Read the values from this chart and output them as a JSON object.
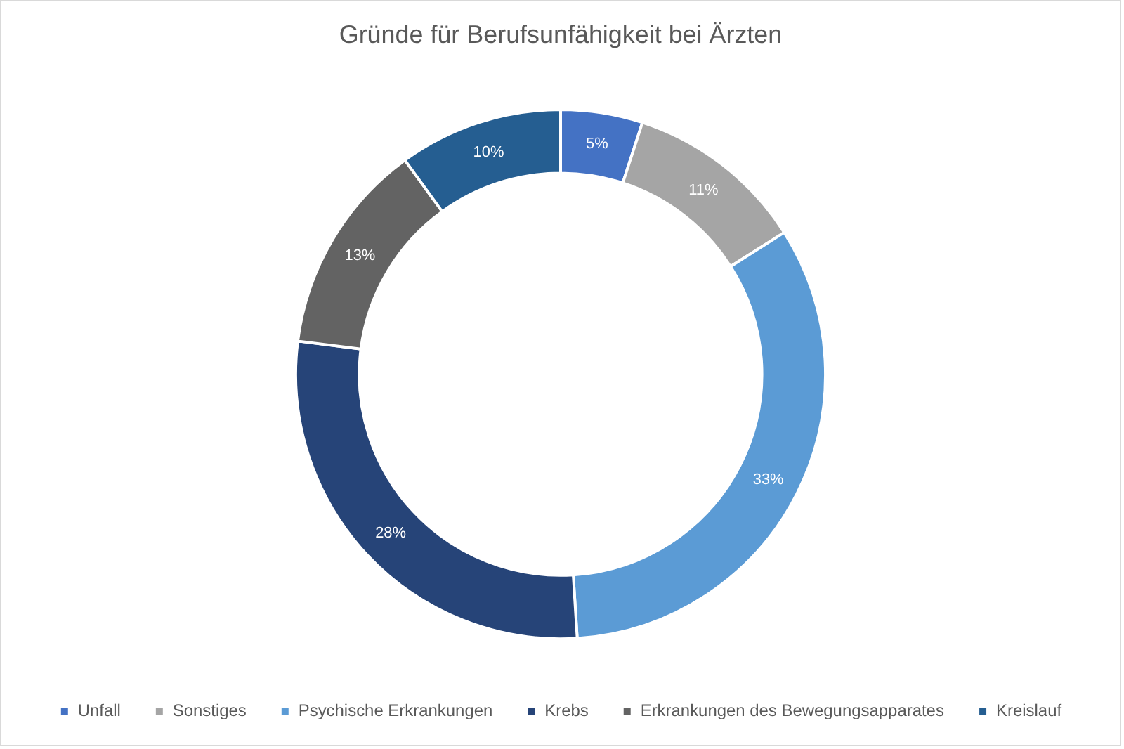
{
  "chart_data": {
    "type": "donut",
    "title": "Gründe für Berufsunfähigkeit bei Ärzten",
    "categories": [
      "Unfall",
      "Sonstiges",
      "Psychische Erkrankungen",
      "Krebs",
      "Erkrankungen des Bewegungsapparates",
      "Kreislauf"
    ],
    "values": [
      5,
      11,
      33,
      28,
      13,
      10
    ],
    "value_labels": [
      "5%",
      "11%",
      "33%",
      "28%",
      "13%",
      "10%"
    ],
    "colors": [
      "#4472c4",
      "#a5a5a5",
      "#5b9bd5",
      "#264478",
      "#636363",
      "#255e91"
    ],
    "legend": "bottom"
  }
}
